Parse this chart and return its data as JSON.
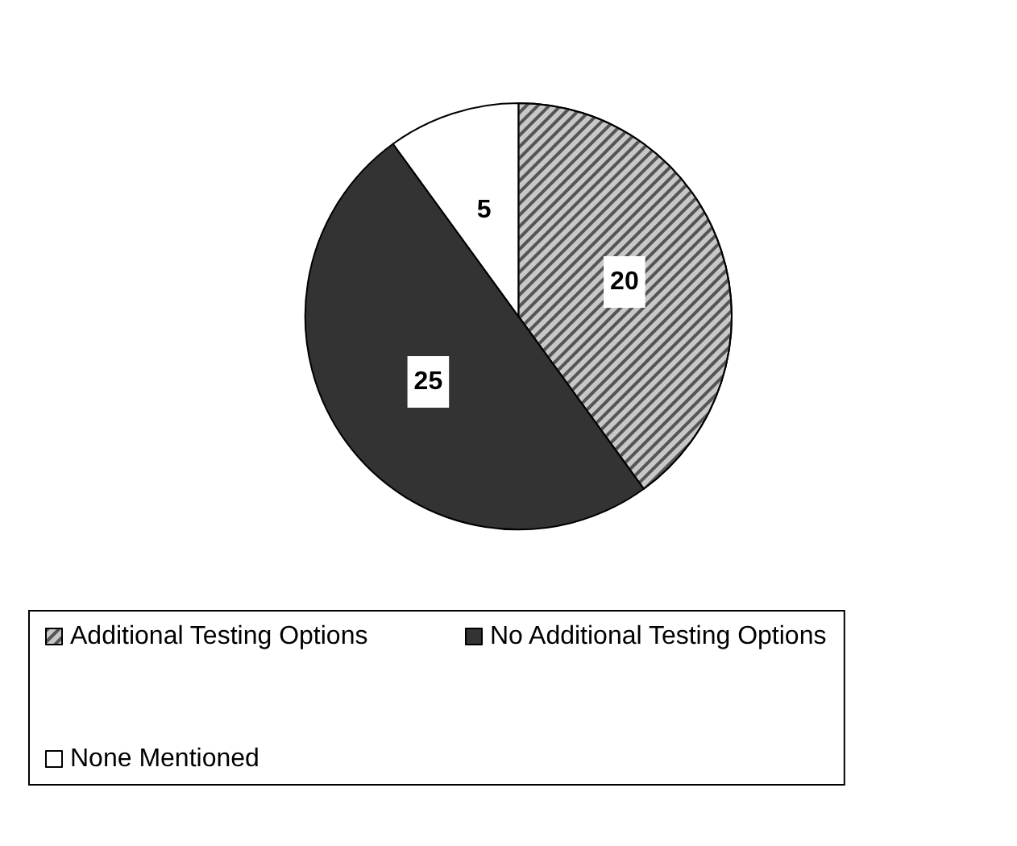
{
  "chart_data": {
    "type": "pie",
    "categories": [
      "Additional Testing Options",
      "No Additional Testing Options",
      "None Mentioned"
    ],
    "values": [
      20,
      25,
      5
    ],
    "colors": [
      "#c8c8c8",
      "#333333",
      "#ffffff"
    ],
    "data_labels": true,
    "legend": "bottom"
  }
}
